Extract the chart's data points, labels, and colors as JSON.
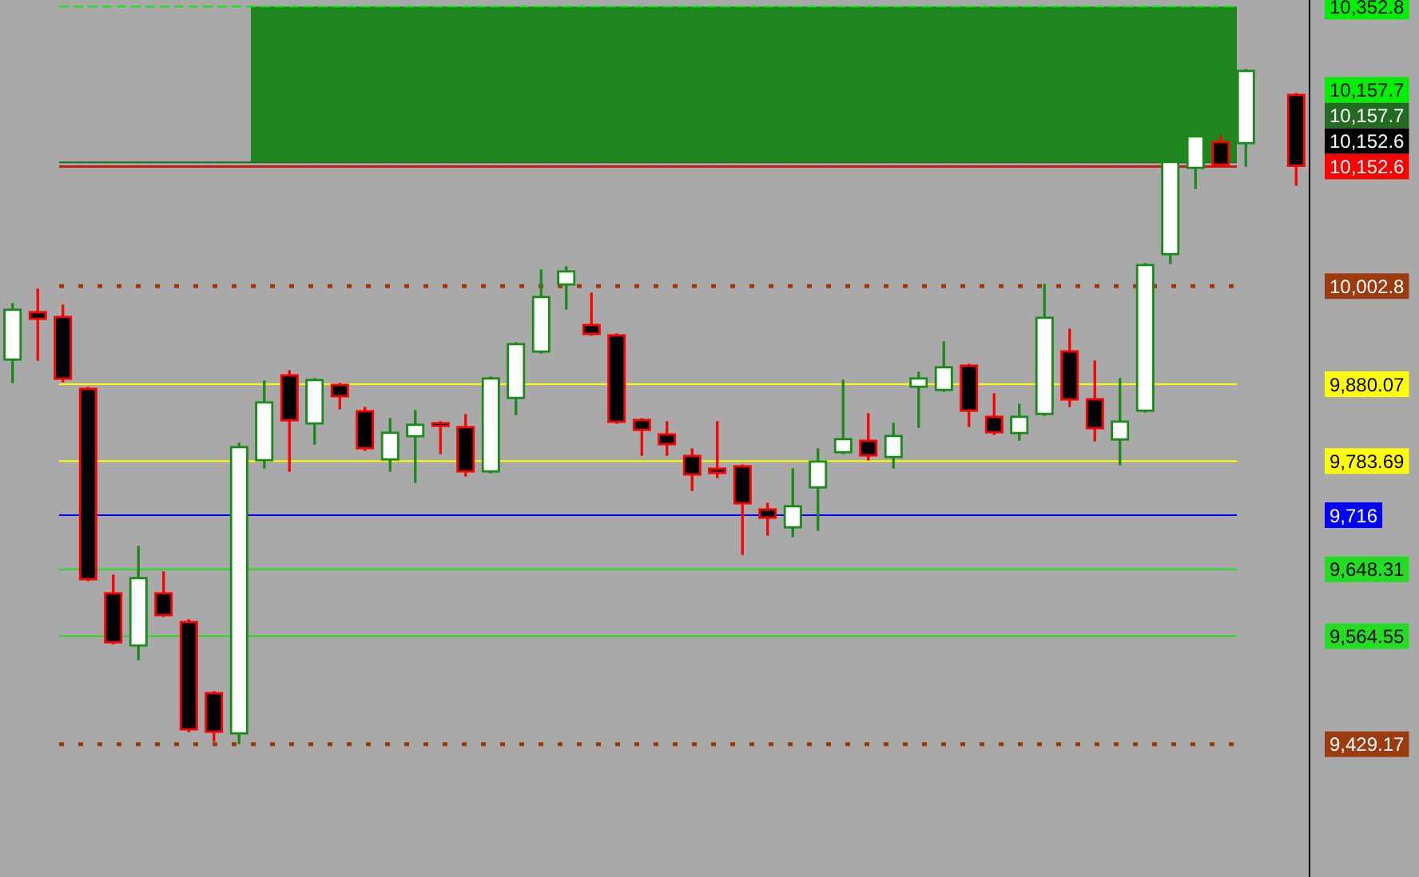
{
  "chart_data": {
    "type": "candlestick",
    "categories": [
      null,
      null,
      null,
      null,
      null,
      null,
      null,
      null,
      null,
      null,
      null,
      null,
      null,
      null,
      null,
      null,
      null,
      null,
      null,
      null,
      null,
      null,
      null,
      null,
      null,
      null,
      null,
      null,
      null,
      null,
      null,
      null,
      null,
      null,
      null,
      null,
      null,
      null,
      null,
      null,
      null,
      null,
      null,
      null,
      null,
      null,
      null,
      null,
      null,
      null,
      null,
      null
    ],
    "ohlc": [
      [
        9910,
        9981,
        9882,
        9974
      ],
      [
        9971,
        9999,
        9910,
        9961
      ],
      [
        9965,
        9979,
        9883,
        9886
      ],
      [
        9875,
        9876,
        9634,
        9635
      ],
      [
        9619,
        9641,
        9555,
        9556
      ],
      [
        9552,
        9677,
        9535,
        9638
      ],
      [
        9619,
        9645,
        9589,
        9590
      ],
      [
        9583,
        9585,
        9445,
        9447
      ],
      [
        9494,
        9495,
        9433,
        9444
      ],
      [
        9442,
        9806,
        9430,
        9802
      ],
      [
        9784,
        9884,
        9775,
        9858
      ],
      [
        9892,
        9897,
        9771,
        9834
      ],
      [
        9830,
        9887,
        9805,
        9886
      ],
      [
        9880,
        9881,
        9849,
        9864
      ],
      [
        9847,
        9851,
        9797,
        9799
      ],
      [
        9785,
        9837,
        9771,
        9820
      ],
      [
        9814,
        9847,
        9757,
        9830
      ],
      [
        9832,
        9833,
        9793,
        9827
      ],
      [
        9827,
        9842,
        9765,
        9770
      ],
      [
        9770,
        9889,
        9769,
        9888
      ],
      [
        9862,
        9932,
        9842,
        9931
      ],
      [
        9920,
        10023,
        9919,
        9990
      ],
      [
        10004,
        10027,
        9974,
        10022
      ],
      [
        9955,
        9994,
        9941,
        9942
      ],
      [
        9942,
        9943,
        9831,
        9832
      ],
      [
        9836,
        9837,
        9791,
        9822
      ],
      [
        9818,
        9833,
        9791,
        9804
      ],
      [
        9791,
        9799,
        9747,
        9766
      ],
      [
        9775,
        9833,
        9763,
        9768
      ],
      [
        9778,
        9779,
        9667,
        9730
      ],
      [
        9724,
        9731,
        9691,
        9712
      ],
      [
        9700,
        9774,
        9689,
        9728
      ],
      [
        9750,
        9799,
        9697,
        9784
      ],
      [
        9794,
        9885,
        9793,
        9812
      ],
      [
        9810,
        9843,
        9785,
        9790
      ],
      [
        9788,
        9831,
        9775,
        9816
      ],
      [
        9876,
        9895,
        9826,
        9888
      ],
      [
        9872,
        9933,
        9871,
        9902
      ],
      [
        9904,
        9905,
        9827,
        9846
      ],
      [
        9840,
        9868,
        9817,
        9819
      ],
      [
        9818,
        9855,
        9810,
        9840
      ],
      [
        9842,
        10005,
        9841,
        9964
      ],
      [
        9922,
        9949,
        9852,
        9860
      ],
      [
        9862,
        9909,
        9809,
        9824
      ],
      [
        9810,
        9887,
        9779,
        9834
      ],
      [
        9846,
        10031,
        9845,
        10030
      ],
      [
        10042,
        10160,
        10031,
        10159
      ],
      [
        10150,
        10191,
        10125,
        10191
      ],
      [
        10184,
        10191,
        10153,
        10154
      ],
      [
        10181,
        10274,
        10153,
        10273
      ],
      null,
      [
        10243,
        10244,
        10129,
        10152.6
      ]
    ],
    "ylim": [
      9263,
      10361
    ],
    "yticks": [
      {
        "value": 10352.8,
        "label": "10,352.8"
      },
      {
        "value": 10002.8,
        "label": "10,002.8"
      },
      {
        "value": 9880.07,
        "label": "9,880.07"
      },
      {
        "value": 9783.69,
        "label": "9,783.69"
      },
      {
        "value": 9716,
        "label": "9,716"
      },
      {
        "value": 9648.31,
        "label": "9,648.31"
      },
      {
        "value": 9564.55,
        "label": "9,564.55"
      },
      {
        "value": 9429.17,
        "label": "9,429.17"
      }
    ],
    "bands": [
      {
        "axis": "y",
        "from": 10157.7,
        "to": 10352.8,
        "color": "#1f861f"
      }
    ],
    "ref_lines": [
      {
        "axis": "y",
        "value": 10352.8,
        "color": "#00ee00",
        "line_style": "dashed"
      },
      {
        "axis": "y",
        "value": 10157.7,
        "color": "#00ee00",
        "line_style": "dashed"
      },
      {
        "axis": "y",
        "value": 10157.7,
        "color": "#236b23",
        "line_style": "solid"
      },
      {
        "axis": "y",
        "value": 10152.6,
        "color": "#000000",
        "line_style": "solid"
      },
      {
        "axis": "y",
        "value": 10152.6,
        "color": "#ff0000",
        "line_style": "solid"
      },
      {
        "axis": "y",
        "value": 10002.8,
        "color": "#9c3a10",
        "line_style": "dotted"
      },
      {
        "axis": "y",
        "value": 9880.07,
        "color": "#ffff00",
        "line_style": "solid"
      },
      {
        "axis": "y",
        "value": 9783.69,
        "color": "#ffff00",
        "line_style": "solid"
      },
      {
        "axis": "y",
        "value": 9716,
        "color": "#0000ff",
        "line_style": "solid"
      },
      {
        "axis": "y",
        "value": 9648.31,
        "color": "#22dd22",
        "line_style": "solid"
      },
      {
        "axis": "y",
        "value": 9564.55,
        "color": "#22dd22",
        "line_style": "solid"
      },
      {
        "axis": "y",
        "value": 9429.17,
        "color": "#9c3a10",
        "line_style": "dotted"
      }
    ],
    "annotations": [
      "10,157.7",
      "10,157.7",
      "10,152.6",
      "10,152.6"
    ],
    "legend": false
  }
}
